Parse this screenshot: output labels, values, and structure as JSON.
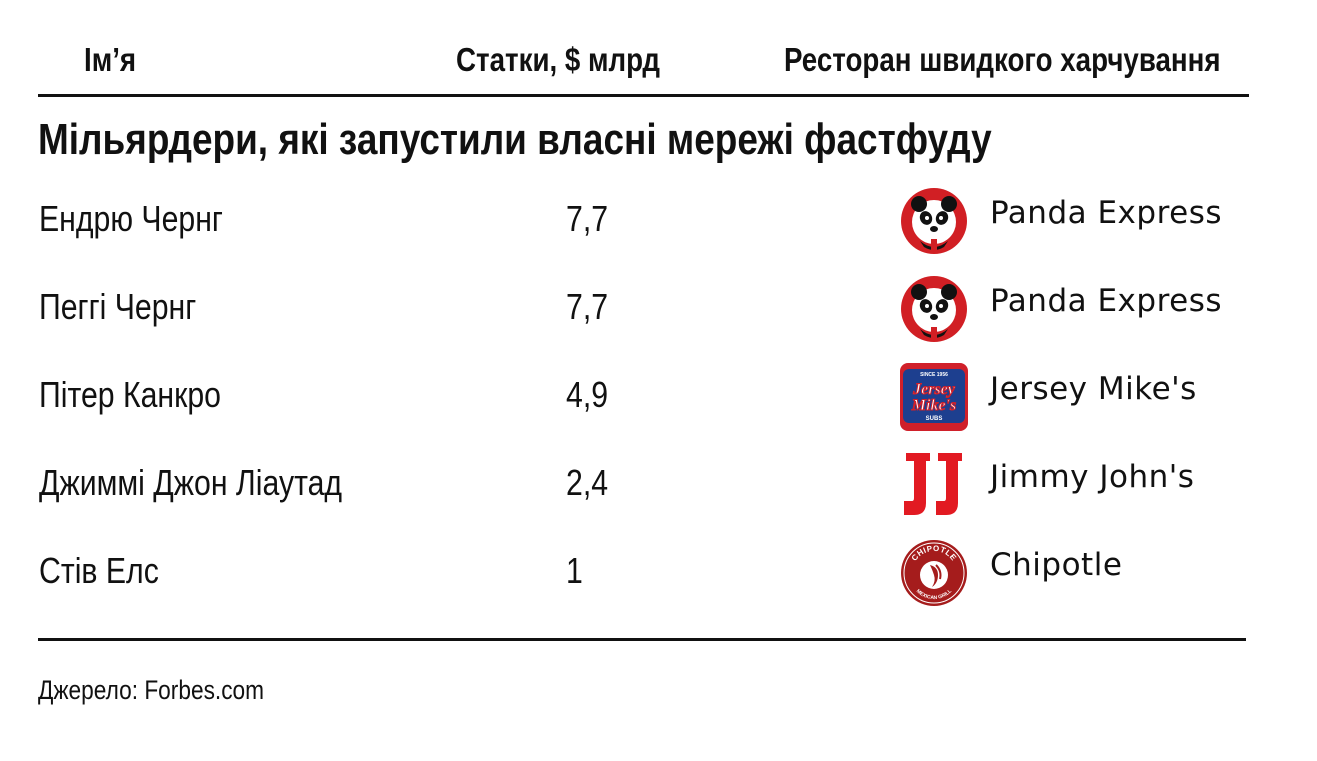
{
  "headers": {
    "name": "Ім’я",
    "net_worth": "Статки, $ млрд",
    "chain": "Ресторан швидкого харчування"
  },
  "title": "Мільярдери, які запустили власні мережі фастфуду",
  "rows": [
    {
      "name": "Ендрю Чернг",
      "net_worth": "7,7",
      "chain": "Panda Express",
      "logo": "panda-express-icon"
    },
    {
      "name": "Пеггі Чернг",
      "net_worth": "7,7",
      "chain": "Panda Express",
      "logo": "panda-express-icon"
    },
    {
      "name": "Пітер Канкро",
      "net_worth": "4,9",
      "chain": "Jersey Mike's",
      "logo": "jersey-mikes-icon",
      "logo_text": {
        "since": "SINCE 1956",
        "line1": "Jersey",
        "line2": "Mike's",
        "subs": "SUBS"
      }
    },
    {
      "name": "Джиммі Джон Ліаутад",
      "net_worth": "2,4",
      "chain": "Jimmy John's",
      "logo": "jimmy-johns-icon",
      "logo_text": {
        "mark": "JJ"
      }
    },
    {
      "name": "Стів Елс",
      "net_worth": "1",
      "chain": "Chipotle",
      "logo": "chipotle-icon",
      "logo_text": {
        "top": "CHIPOTLE",
        "bottom": "MEXICAN GRILL"
      }
    }
  ],
  "source": "Джерело: Forbes.com",
  "colors": {
    "text": "#111111",
    "panda_red": "#d11f24",
    "jersey_red": "#d0202a",
    "jersey_blue": "#1d3f8f",
    "jimmy_red": "#e21a22",
    "chipotle_red": "#a51c1c"
  }
}
